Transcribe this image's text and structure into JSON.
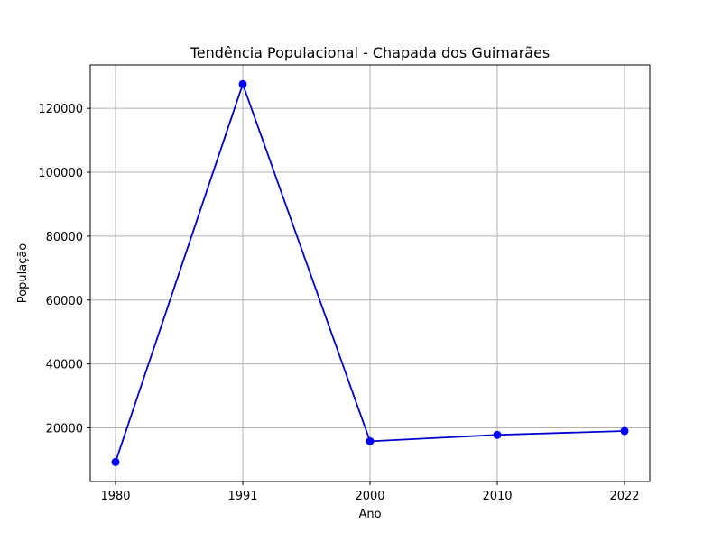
{
  "chart_data": {
    "type": "line",
    "title": "Tendência Populacional - Chapada dos Guimarães",
    "xlabel": "Ano",
    "ylabel": "População",
    "categories": [
      "1980",
      "1991",
      "2000",
      "2010",
      "2022"
    ],
    "series": [
      {
        "values": [
          9300,
          127600,
          15800,
          17800,
          19000
        ]
      }
    ],
    "ylim": [
      3200,
      133600
    ],
    "yticks": [
      20000,
      40000,
      60000,
      80000,
      100000,
      120000
    ],
    "ytick_labels": [
      "20000",
      "40000",
      "60000",
      "80000",
      "100000",
      "120000"
    ],
    "grid": true,
    "legend": "none",
    "line_color": "#0000cc",
    "marker_color": "#0000ff",
    "grid_color": "#b0b0b0"
  }
}
